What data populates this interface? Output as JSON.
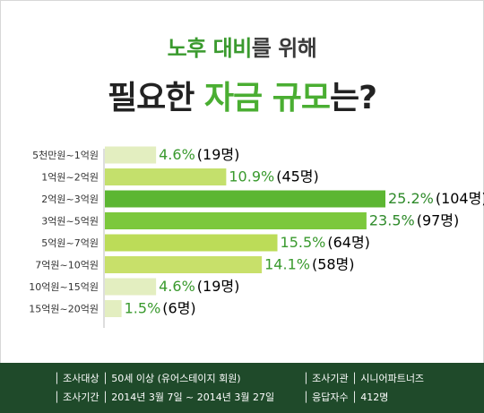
{
  "title": {
    "line1_accent": "노후 대비",
    "line1_rest": "를 위해",
    "line2_pre": "필요한 ",
    "line2_accent": "자금 규모",
    "line2_post": "는?"
  },
  "chart_data": {
    "type": "bar",
    "orientation": "horizontal",
    "categories": [
      "5천만원~1억원",
      "1억원~2억원",
      "2억원~3억원",
      "3억원~5억원",
      "5억원~7억원",
      "7억원~10억원",
      "10억원~15억원",
      "15억원~20억원"
    ],
    "series": [
      {
        "values": [
          4.6,
          10.9,
          25.2,
          23.5,
          15.5,
          14.1,
          4.6,
          1.5
        ]
      }
    ],
    "value_labels": [
      "4.6%",
      "10.9%",
      "25.2%",
      "23.5%",
      "15.5%",
      "14.1%",
      "4.6%",
      "1.5%"
    ],
    "count_labels": [
      "(19명)",
      "(45명)",
      "(104명)",
      "(97명)",
      "(64명)",
      "(58명)",
      "(19명)",
      "(6명)"
    ],
    "bar_colors": [
      "#e3eec0",
      "#c4e06c",
      "#5cb632",
      "#7cc83c",
      "#bcdc58",
      "#c8e06a",
      "#e3eec0",
      "#e3eec0"
    ],
    "label_colors": [
      "#3a9a2e",
      "#3a9a2e",
      "#2e8a2a",
      "#2e8a2a",
      "#3a9a2e",
      "#3a9a2e",
      "#3a9a2e",
      "#3a9a2e"
    ],
    "xlim": [
      0,
      25.2
    ],
    "grid": false,
    "legend": "none"
  },
  "footer": {
    "target_label": "│ 조사대상 │ 50세 이상 (유어스테이지 회원)",
    "agency_label": "│ 조사기관 │ 시니어파트너즈",
    "period_label": "│ 조사기간 │ 2014년 3월 7일 ~ 2014년 3월 27일",
    "respondents_label": "│ 응답자수 │ 412명"
  },
  "colors": {
    "accent": "#4aae32",
    "footer_bg": "#1f4a2a"
  }
}
